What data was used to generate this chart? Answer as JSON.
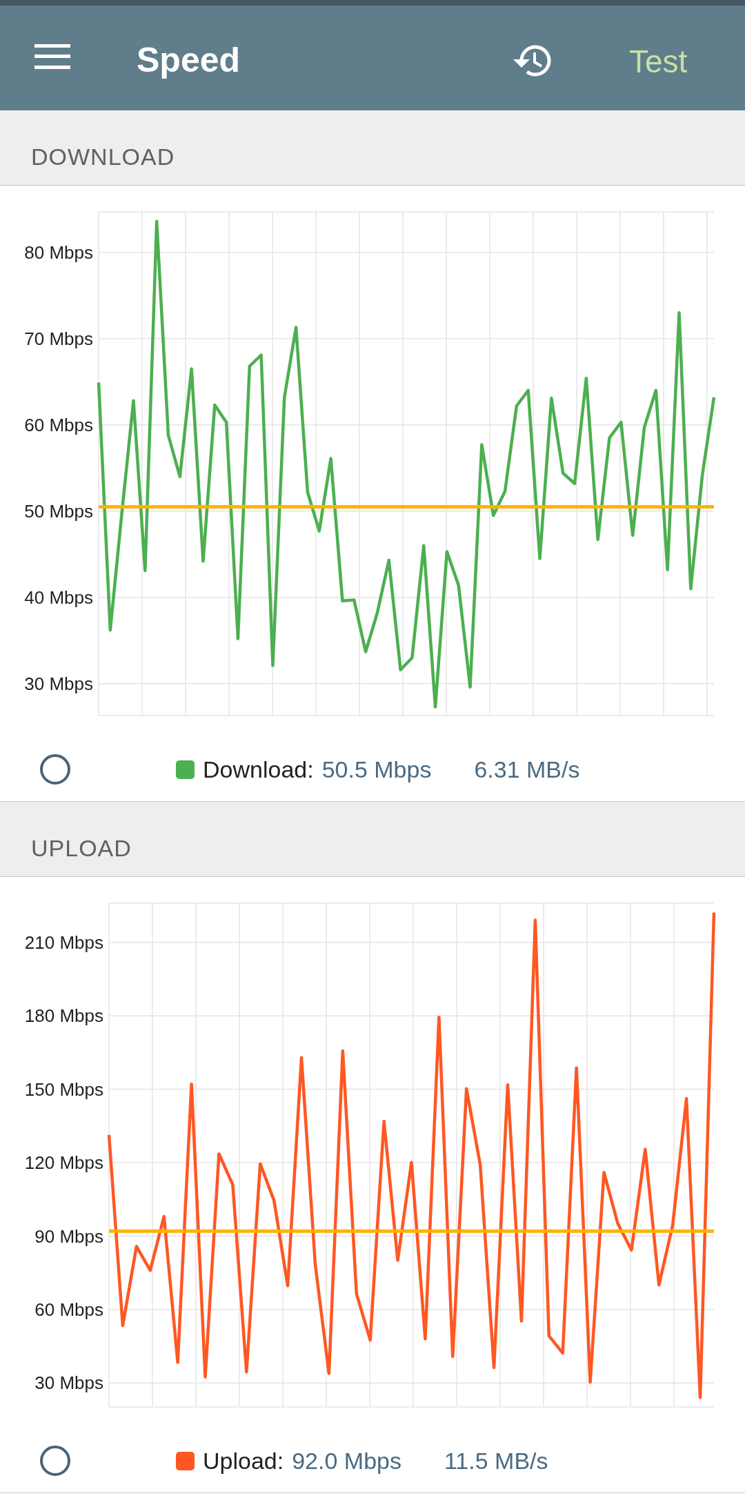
{
  "chart_data": [
    {
      "type": "line",
      "title": "DOWNLOAD",
      "annotations": [
        "Speed",
        "Test",
        "50.5 Mbps",
        "6.31 MB/s"
      ],
      "categories": [
        null,
        null,
        null,
        null,
        null,
        null,
        null,
        null,
        null,
        null,
        null,
        null,
        null,
        null,
        null,
        null,
        null,
        null,
        null,
        null,
        null,
        null,
        null,
        null,
        null,
        null,
        null,
        null,
        null,
        null,
        null,
        null,
        null,
        null,
        null,
        null,
        null,
        null,
        null,
        null,
        null,
        null,
        null,
        null,
        null,
        null,
        null,
        null,
        null,
        null,
        null,
        null,
        null,
        null
      ],
      "series": [
        {
          "name": "Download:",
          "color": "#4caf50",
          "values": [
            64.9,
            36.2,
            49.8,
            62.8,
            43.1,
            83.6,
            58.8,
            54.0,
            66.5,
            44.2,
            62.3,
            60.3,
            35.2,
            66.8,
            68.1,
            32.1,
            63.2,
            71.3,
            52.2,
            47.7,
            56.1,
            39.6,
            39.7,
            33.7,
            38.2,
            44.3,
            31.6,
            33.0,
            46.0,
            27.3,
            45.3,
            41.4,
            29.6,
            57.7,
            49.5,
            52.3,
            62.2,
            64.0,
            44.5,
            63.1,
            54.4,
            53.2,
            65.4,
            46.7,
            58.5,
            60.3,
            47.2,
            59.7,
            64.0,
            43.2,
            73.0,
            41.0,
            54.2,
            63.2
          ]
        }
      ],
      "ylim": [
        26.3,
        84.7
      ],
      "yticks": [
        {
          "value": 30,
          "label": "30 Mbps"
        },
        {
          "value": 40,
          "label": "40 Mbps"
        },
        {
          "value": 50,
          "label": "50 Mbps"
        },
        {
          "value": 60,
          "label": "60 Mbps"
        },
        {
          "value": 70,
          "label": "70 Mbps"
        },
        {
          "value": 80,
          "label": "80 Mbps"
        }
      ],
      "ref_lines": [
        {
          "axis": "y",
          "value": 50.5,
          "color": "#ffb300"
        }
      ],
      "grid": true,
      "legend": "bottom",
      "tick_labels": "y",
      "marker": "none",
      "line_style": "solid"
    },
    {
      "type": "line",
      "title": "UPLOAD",
      "annotations": [
        "92.0 Mbps",
        "11.5 MB/s"
      ],
      "categories": [
        null,
        null,
        null,
        null,
        null,
        null,
        null,
        null,
        null,
        null,
        null,
        null,
        null,
        null,
        null,
        null,
        null,
        null,
        null,
        null,
        null,
        null,
        null,
        null,
        null,
        null,
        null,
        null,
        null,
        null,
        null,
        null,
        null,
        null,
        null,
        null,
        null,
        null,
        null,
        null,
        null,
        null,
        null,
        null,
        null
      ],
      "series": [
        {
          "name": "Upload:",
          "color": "#ff5722",
          "values": [
            131.3,
            53.4,
            85.8,
            76.0,
            98.0,
            38.4,
            152.1,
            32.4,
            123.6,
            111.0,
            34.5,
            119.5,
            104.6,
            69.7,
            162.9,
            78.4,
            33.9,
            165.7,
            66.5,
            47.5,
            136.9,
            80.1,
            120.1,
            48.0,
            179.4,
            40.8,
            150.2,
            119.1,
            36.3,
            151.8,
            55.3,
            219.1,
            49.2,
            42.2,
            158.7,
            30.3,
            116.0,
            95.2,
            84.3,
            125.4,
            70.0,
            94.5,
            146.2,
            24.0,
            222.2
          ]
        }
      ],
      "ylim": [
        20.2,
        226
      ],
      "yticks": [
        {
          "value": 30,
          "label": "30 Mbps"
        },
        {
          "value": 60,
          "label": "60 Mbps"
        },
        {
          "value": 90,
          "label": "90 Mbps"
        },
        {
          "value": 120,
          "label": "120 Mbps"
        },
        {
          "value": 150,
          "label": "150 Mbps"
        },
        {
          "value": 180,
          "label": "180 Mbps"
        },
        {
          "value": 210,
          "label": "210 Mbps"
        }
      ],
      "ref_lines": [
        {
          "axis": "y",
          "value": 92.0,
          "color": "#ffb300"
        }
      ],
      "grid": true,
      "legend": "bottom",
      "tick_labels": "y",
      "marker": "none",
      "line_style": "solid"
    }
  ]
}
